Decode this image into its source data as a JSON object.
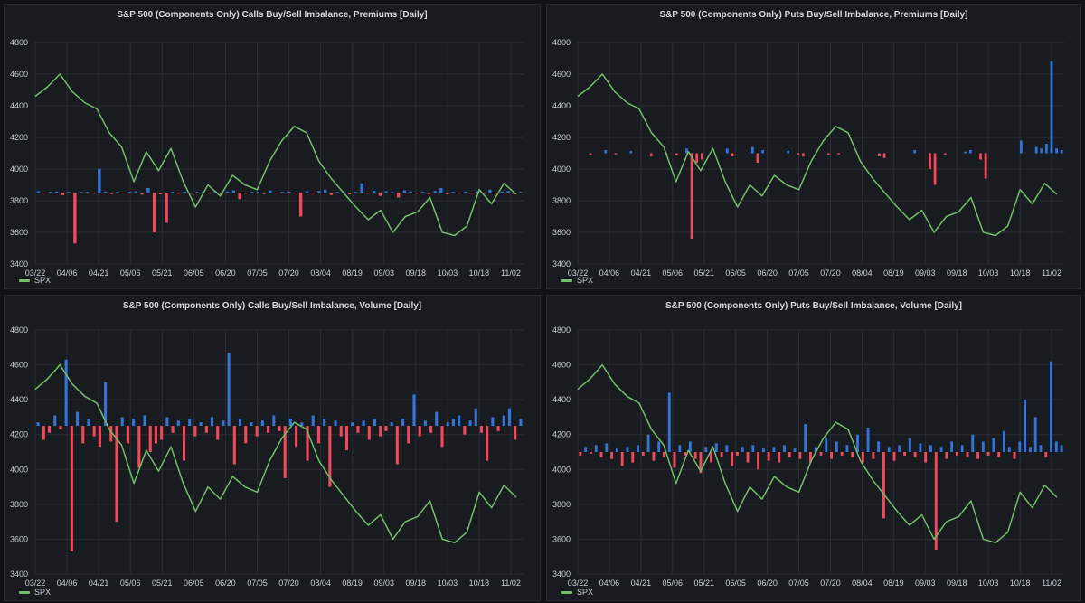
{
  "colors": {
    "spx": "#73bf69",
    "buy": "#3274d9",
    "sell": "#f2495c",
    "grid": "#2a2d33",
    "axis": "#c7d0d9"
  },
  "dates": [
    "03/22",
    "04/06",
    "04/21",
    "05/06",
    "05/21",
    "06/05",
    "06/20",
    "07/05",
    "07/20",
    "08/04",
    "08/19",
    "09/03",
    "09/18",
    "10/03",
    "10/18",
    "11/02"
  ],
  "spx": [
    4460,
    4520,
    4600,
    4490,
    4420,
    4380,
    4230,
    4140,
    3920,
    4110,
    3990,
    4130,
    3920,
    3760,
    3900,
    3830,
    3960,
    3900,
    3870,
    4050,
    4180,
    4270,
    4230,
    4050,
    3940,
    3850,
    3760,
    3680,
    3740,
    3600,
    3700,
    3730,
    3820,
    3600,
    3580,
    3640,
    3870,
    3780,
    3910,
    3840
  ],
  "panels": [
    {
      "title": "S&P 500 (Components Only) Calls Buy/Sell Imbalance, Premiums [Daily]",
      "legend": "SPX",
      "yticks": [
        "4800",
        "4600",
        "4400",
        "4200",
        "4000",
        "3800",
        "3600",
        "3400"
      ],
      "chart_data": {
        "type": "line+bar",
        "ylim": [
          3400,
          4800
        ],
        "baseline": 3850,
        "bars": [
          10,
          -5,
          3,
          8,
          -15,
          2,
          -320,
          4,
          5,
          -6,
          150,
          8,
          -8,
          3,
          -5,
          6,
          10,
          -12,
          30,
          -250,
          -10,
          -190,
          5,
          -3,
          8,
          -6,
          4,
          3,
          -4,
          12,
          -10,
          8,
          15,
          -40,
          -5,
          3,
          6,
          -8,
          14,
          -5,
          4,
          9,
          -3,
          -150,
          10,
          -6,
          12,
          20,
          -14,
          5,
          8,
          -10,
          4,
          60,
          -6,
          12,
          -20,
          10,
          5,
          -30,
          15,
          8,
          -5,
          4,
          -8,
          12,
          30,
          -10,
          5,
          -4,
          8,
          -6,
          10,
          -3,
          20,
          -5,
          8,
          12,
          -6,
          4
        ]
      }
    },
    {
      "title": "S&P 500 (Components Only) Puts Buy/Sell Imbalance, Premiums [Daily]",
      "legend": "SPX",
      "yticks": [
        "4800",
        "4600",
        "4400",
        "4200",
        "4000",
        "3800",
        "3600",
        "3400"
      ],
      "chart_data": {
        "type": "line+bar",
        "ylim": [
          3400,
          4800
        ],
        "baseline": 4100,
        "bars": [
          0,
          0,
          -10,
          0,
          0,
          20,
          0,
          -8,
          0,
          0,
          14,
          0,
          0,
          0,
          -20,
          0,
          0,
          -8,
          0,
          -15,
          0,
          30,
          -540,
          -60,
          -40,
          0,
          0,
          0,
          0,
          30,
          -20,
          0,
          0,
          0,
          40,
          -60,
          20,
          0,
          0,
          0,
          0,
          15,
          0,
          -10,
          -20,
          0,
          0,
          0,
          0,
          -10,
          0,
          -8,
          0,
          0,
          0,
          0,
          0,
          0,
          0,
          -20,
          -30,
          0,
          0,
          0,
          0,
          0,
          20,
          0,
          0,
          -100,
          -200,
          0,
          -10,
          0,
          0,
          0,
          10,
          20,
          0,
          -40,
          -160,
          0,
          0,
          0,
          0,
          0,
          0,
          80,
          0,
          0,
          40,
          30,
          60,
          580,
          30,
          20
        ]
      }
    },
    {
      "title": "S&P 500 (Components Only) Calls Buy/Sell Imbalance, Volume [Daily]",
      "legend": "SPX",
      "yticks": [
        "4800",
        "4600",
        "4400",
        "4200",
        "4000",
        "3800",
        "3600",
        "3400"
      ],
      "chart_data": {
        "type": "line+bar",
        "ylim": [
          3400,
          4800
        ],
        "baseline": 4250,
        "bars": [
          20,
          -80,
          -40,
          60,
          -20,
          380,
          -720,
          80,
          -100,
          40,
          -60,
          -120,
          250,
          -90,
          -550,
          50,
          -100,
          40,
          -240,
          60,
          -150,
          -100,
          -80,
          50,
          -40,
          30,
          -200,
          40,
          -60,
          20,
          -40,
          50,
          -80,
          30,
          420,
          -220,
          40,
          -100,
          20,
          -60,
          30,
          -40,
          60,
          -30,
          -300,
          40,
          -120,
          20,
          -200,
          60,
          -100,
          40,
          -350,
          30,
          -60,
          -140,
          20,
          -40,
          30,
          -80,
          40,
          -60,
          -30,
          20,
          -220,
          40,
          -100,
          180,
          -60,
          30,
          -40,
          80,
          -120,
          20,
          40,
          60,
          -50,
          30,
          100,
          -40,
          -200,
          50,
          -30,
          60,
          100,
          -80,
          40
        ]
      }
    },
    {
      "title": "S&P 500 (Components Only) Puts Buy/Sell Imbalance, Volume [Daily]",
      "legend": "SPX",
      "yticks": [
        "4800",
        "4600",
        "4400",
        "4200",
        "4000",
        "3800",
        "3600",
        "3400"
      ],
      "chart_data": {
        "type": "line+bar",
        "ylim": [
          3400,
          4800
        ],
        "baseline": 4100,
        "bars": [
          -20,
          30,
          -10,
          40,
          -30,
          50,
          -40,
          20,
          -80,
          30,
          -60,
          40,
          -20,
          100,
          -50,
          60,
          -30,
          340,
          -90,
          40,
          -20,
          60,
          -40,
          -120,
          30,
          -60,
          50,
          -30,
          40,
          -80,
          -20,
          30,
          -60,
          40,
          -100,
          20,
          -50,
          30,
          -60,
          40,
          -30,
          20,
          -40,
          160,
          -60,
          30,
          -20,
          80,
          -40,
          60,
          -20,
          40,
          -30,
          100,
          -60,
          140,
          -40,
          60,
          -380,
          30,
          -50,
          40,
          -20,
          80,
          -30,
          50,
          -60,
          40,
          -560,
          30,
          -40,
          60,
          -20,
          40,
          -30,
          100,
          -40,
          60,
          -20,
          80,
          -30,
          120,
          30,
          -40,
          60,
          300,
          30,
          200,
          40,
          -30,
          520,
          60,
          40
        ]
      }
    }
  ]
}
